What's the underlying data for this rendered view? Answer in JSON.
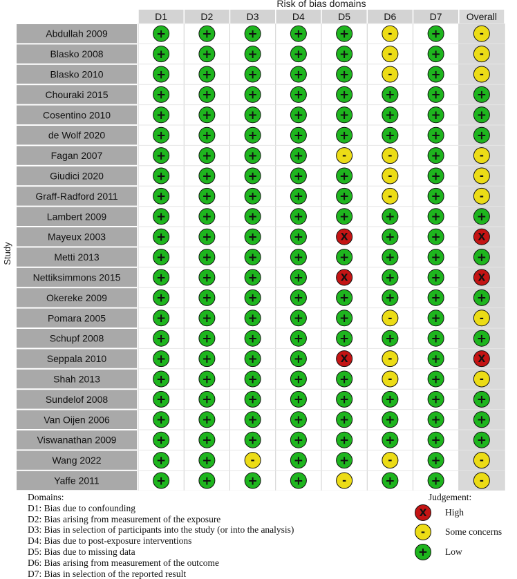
{
  "chart_data": {
    "type": "table",
    "title": "Risk of bias domains",
    "ylabel": "Study",
    "columns": [
      "D1",
      "D2",
      "D3",
      "D4",
      "D5",
      "D6",
      "D7",
      "Overall"
    ],
    "studies": [
      {
        "name": "Abdullah 2009",
        "judgements": [
          "low",
          "low",
          "low",
          "low",
          "low",
          "some",
          "low",
          "some"
        ]
      },
      {
        "name": "Blasko 2008",
        "judgements": [
          "low",
          "low",
          "low",
          "low",
          "low",
          "some",
          "low",
          "some"
        ]
      },
      {
        "name": "Blasko 2010",
        "judgements": [
          "low",
          "low",
          "low",
          "low",
          "low",
          "some",
          "low",
          "some"
        ]
      },
      {
        "name": "Chouraki 2015",
        "judgements": [
          "low",
          "low",
          "low",
          "low",
          "low",
          "low",
          "low",
          "low"
        ]
      },
      {
        "name": "Cosentino 2010",
        "judgements": [
          "low",
          "low",
          "low",
          "low",
          "low",
          "low",
          "low",
          "low"
        ]
      },
      {
        "name": "de Wolf 2020",
        "judgements": [
          "low",
          "low",
          "low",
          "low",
          "low",
          "low",
          "low",
          "low"
        ]
      },
      {
        "name": "Fagan 2007",
        "judgements": [
          "low",
          "low",
          "low",
          "low",
          "some",
          "some",
          "low",
          "some"
        ]
      },
      {
        "name": "Giudici 2020",
        "judgements": [
          "low",
          "low",
          "low",
          "low",
          "low",
          "some",
          "low",
          "some"
        ]
      },
      {
        "name": "Graff-Radford 2011",
        "judgements": [
          "low",
          "low",
          "low",
          "low",
          "low",
          "some",
          "low",
          "some"
        ]
      },
      {
        "name": "Lambert 2009",
        "judgements": [
          "low",
          "low",
          "low",
          "low",
          "low",
          "low",
          "low",
          "low"
        ]
      },
      {
        "name": "Mayeux 2003",
        "judgements": [
          "low",
          "low",
          "low",
          "low",
          "high",
          "low",
          "low",
          "high"
        ]
      },
      {
        "name": "Metti 2013",
        "judgements": [
          "low",
          "low",
          "low",
          "low",
          "low",
          "low",
          "low",
          "low"
        ]
      },
      {
        "name": "Nettiksimmons 2015",
        "judgements": [
          "low",
          "low",
          "low",
          "low",
          "high",
          "low",
          "low",
          "high"
        ]
      },
      {
        "name": "Okereke 2009",
        "judgements": [
          "low",
          "low",
          "low",
          "low",
          "low",
          "low",
          "low",
          "low"
        ]
      },
      {
        "name": "Pomara 2005",
        "judgements": [
          "low",
          "low",
          "low",
          "low",
          "low",
          "some",
          "low",
          "some"
        ]
      },
      {
        "name": "Schupf 2008",
        "judgements": [
          "low",
          "low",
          "low",
          "low",
          "low",
          "low",
          "low",
          "low"
        ]
      },
      {
        "name": "Seppala 2010",
        "judgements": [
          "low",
          "low",
          "low",
          "low",
          "high",
          "some",
          "low",
          "high"
        ]
      },
      {
        "name": "Shah 2013",
        "judgements": [
          "low",
          "low",
          "low",
          "low",
          "low",
          "some",
          "low",
          "some"
        ]
      },
      {
        "name": "Sundelof 2008",
        "judgements": [
          "low",
          "low",
          "low",
          "low",
          "low",
          "low",
          "low",
          "low"
        ]
      },
      {
        "name": "Van Oijen 2006",
        "judgements": [
          "low",
          "low",
          "low",
          "low",
          "low",
          "low",
          "low",
          "low"
        ]
      },
      {
        "name": "Viswanathan 2009",
        "judgements": [
          "low",
          "low",
          "low",
          "low",
          "low",
          "low",
          "low",
          "low"
        ]
      },
      {
        "name": "Wang 2022",
        "judgements": [
          "low",
          "low",
          "some",
          "low",
          "low",
          "some",
          "low",
          "some"
        ]
      },
      {
        "name": "Yaffe 2011",
        "judgements": [
          "low",
          "low",
          "low",
          "low",
          "some",
          "low",
          "low",
          "some"
        ]
      }
    ],
    "symbols": {
      "low": "+",
      "some": "-",
      "high": "X"
    },
    "colors": {
      "low": "#1eb51e",
      "some": "#ecdc16",
      "high": "#c41414",
      "header_bg": "#d3d3d3",
      "label_bg": "#a9a9a9",
      "overall_bg": "#d9d9d9",
      "grid": "#ffffff"
    },
    "domains_title": "Domains:",
    "domains": [
      "D1: Bias due to confounding",
      "D2: Bias arising from measurement of the exposure",
      "D3: Bias in selection of participants into the study (or into the analysis)",
      "D4: Bias due to post-exposure interventions",
      "D5: Bias due to missing data",
      "D6: Bias arising from measurement of the outcome",
      "D7: Bias in selection of the reported result"
    ],
    "judgement_title": "Judgement:",
    "judgements_legend": [
      {
        "key": "high",
        "label": "High"
      },
      {
        "key": "some",
        "label": "Some concerns"
      },
      {
        "key": "low",
        "label": "Low"
      }
    ]
  }
}
